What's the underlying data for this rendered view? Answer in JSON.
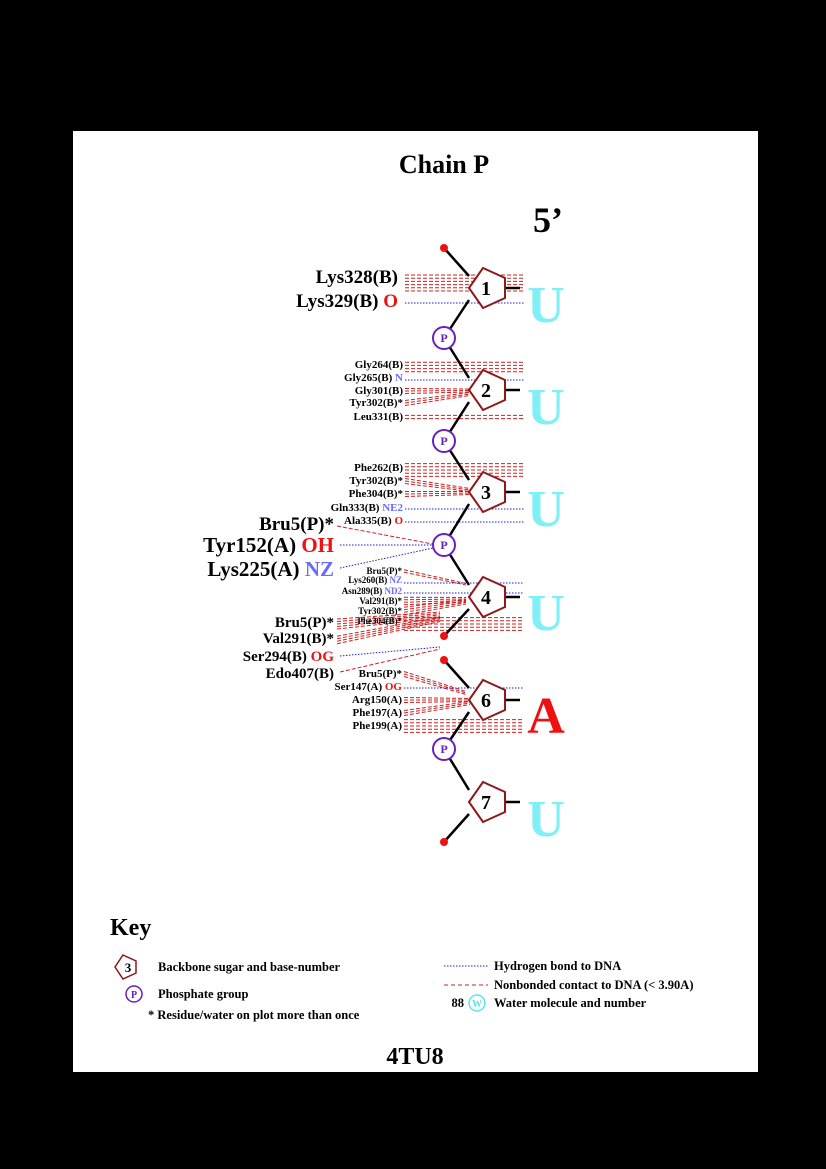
{
  "title": "Chain P",
  "end_label": "5’",
  "pdb_code": "4TU8",
  "phosphate_label": "P",
  "colors": {
    "background": "#000000",
    "panel": "#ffffff",
    "sugar": "#8b1a1a",
    "phosphate": "#6a1fbf",
    "hbond": "#1f1fd6",
    "nonbonded": "#cc2222",
    "base_pyrimidine": "#7ff0f5",
    "base_purine": "#ee1111",
    "atom_red": "#ee1111",
    "atom_blue": "#6a6aff",
    "terminal_dot": "#ee1111"
  },
  "nucleotides": [
    {
      "number": "1",
      "base": "U"
    },
    {
      "number": "2",
      "base": "U"
    },
    {
      "number": "3",
      "base": "U"
    },
    {
      "number": "4",
      "base": "U"
    },
    {
      "number": "6",
      "base": "A"
    },
    {
      "number": "7",
      "base": "U"
    }
  ],
  "residues": [
    {
      "name": "Lys328(B)",
      "atom": "",
      "atom_color": "red",
      "size": "large"
    },
    {
      "name": "Lys329(B)",
      "atom": "O",
      "atom_color": "red",
      "size": "large"
    },
    {
      "name": "Gly264(B)",
      "atom": "",
      "atom_color": "red",
      "size": "small"
    },
    {
      "name": "Gly265(B)",
      "atom": "N",
      "atom_color": "blue",
      "size": "small"
    },
    {
      "name": "Gly301(B)",
      "atom": "",
      "atom_color": "red",
      "size": "small"
    },
    {
      "name": "Tyr302(B)*",
      "atom": "",
      "atom_color": "red",
      "size": "small"
    },
    {
      "name": "Leu331(B)",
      "atom": "",
      "atom_color": "red",
      "size": "small"
    },
    {
      "name": "Phe262(B)",
      "atom": "",
      "atom_color": "red",
      "size": "small"
    },
    {
      "name": "Tyr302(B)*",
      "atom": "",
      "atom_color": "red",
      "size": "small"
    },
    {
      "name": "Phe304(B)*",
      "atom": "",
      "atom_color": "red",
      "size": "small"
    },
    {
      "name": "Gln333(B)",
      "atom": "NE2",
      "atom_color": "blue",
      "size": "small"
    },
    {
      "name": "Ala335(B)",
      "atom": "O",
      "atom_color": "red",
      "size": "small"
    },
    {
      "name": "Bru5(P)*",
      "atom": "",
      "atom_color": "red",
      "size": "large"
    },
    {
      "name": "Tyr152(A)",
      "atom": "OH",
      "atom_color": "red",
      "size": "xlarge"
    },
    {
      "name": "Lys225(A)",
      "atom": "NZ",
      "atom_color": "blue",
      "size": "xlarge"
    },
    {
      "name": "Bru5(P)*",
      "atom": "",
      "atom_color": "red",
      "size": "tiny"
    },
    {
      "name": "Lys260(B)",
      "atom": "NZ",
      "atom_color": "blue",
      "size": "tiny"
    },
    {
      "name": "Asn289(B)",
      "atom": "ND2",
      "atom_color": "blue",
      "size": "tiny"
    },
    {
      "name": "Val291(B)*",
      "atom": "",
      "atom_color": "red",
      "size": "tiny"
    },
    {
      "name": "Tyr302(B)*",
      "atom": "",
      "atom_color": "red",
      "size": "tiny"
    },
    {
      "name": "Phe304(B)*",
      "atom": "",
      "atom_color": "red",
      "size": "tiny"
    },
    {
      "name": "Bru5(P)*",
      "atom": "",
      "atom_color": "red",
      "size": "medium"
    },
    {
      "name": "Val291(B)*",
      "atom": "",
      "atom_color": "red",
      "size": "medium"
    },
    {
      "name": "Ser294(B)",
      "atom": "OG",
      "atom_color": "red",
      "size": "medium"
    },
    {
      "name": "Edo407(B)",
      "atom": "",
      "atom_color": "red",
      "size": "medium"
    },
    {
      "name": "Bru5(P)*",
      "atom": "",
      "atom_color": "red",
      "size": "small"
    },
    {
      "name": "Ser147(A)",
      "atom": "OG",
      "atom_color": "red",
      "size": "small"
    },
    {
      "name": "Arg150(A)",
      "atom": "",
      "atom_color": "red",
      "size": "small"
    },
    {
      "name": "Phe197(A)",
      "atom": "",
      "atom_color": "red",
      "size": "small"
    },
    {
      "name": "Phe199(A)",
      "atom": "",
      "atom_color": "red",
      "size": "small"
    }
  ],
  "key": {
    "title": "Key",
    "sugar_sample": "3",
    "sugar_text": "Backbone sugar and base-number",
    "phosphate_text": "Phosphate group",
    "repeat_text": "* Residue/water on plot more than once",
    "hbond_text": "Hydrogen bond to DNA",
    "nonbonded_text": "Nonbonded contact to DNA (< 3.90A)",
    "water_number": "88",
    "water_symbol": "W",
    "water_text": "Water molecule and number"
  }
}
